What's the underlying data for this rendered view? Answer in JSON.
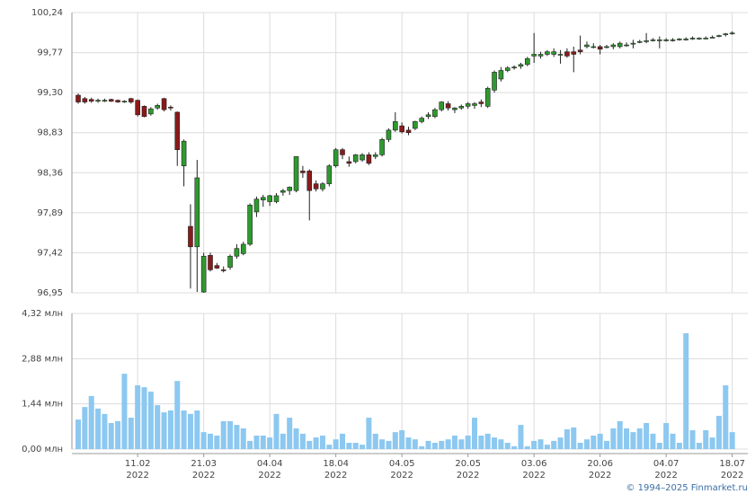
{
  "chart_data": [
    {
      "type": "candlestick",
      "open": [
        99.27,
        99.23,
        99.22,
        99.21,
        99.21,
        99.22,
        99.21,
        99.2,
        99.23,
        99.21,
        99.14,
        99.05,
        99.12,
        99.23,
        99.13,
        99.07,
        98.44,
        97.73,
        97.49,
        96.96,
        97.39,
        97.27,
        97.22,
        97.25,
        97.38,
        97.41,
        97.52,
        97.9,
        98.04,
        98.02,
        98.02,
        98.13,
        98.15,
        98.15,
        98.38,
        98.38,
        98.23,
        98.17,
        98.23,
        98.44,
        98.63,
        98.49,
        98.49,
        98.51,
        98.57,
        98.55,
        98.57,
        98.75,
        98.86,
        98.91,
        98.86,
        98.88,
        98.96,
        99.02,
        99.02,
        99.1,
        99.17,
        99.1,
        99.12,
        99.14,
        99.15,
        99.19,
        99.14,
        99.33,
        99.46,
        99.56,
        99.59,
        99.61,
        99.63,
        99.73,
        99.73,
        99.75,
        99.75,
        99.75,
        99.78,
        99.78,
        99.8,
        99.84,
        99.84,
        99.84,
        99.84,
        99.84,
        99.84,
        99.86,
        99.88,
        99.9,
        99.91,
        99.92,
        99.92,
        99.92,
        99.92,
        99.93,
        99.93,
        99.94,
        99.94,
        99.94,
        99.95,
        99.96,
        99.98,
        100.0
      ],
      "high": [
        99.29,
        99.25,
        99.24,
        99.23,
        99.23,
        99.23,
        99.22,
        99.21,
        99.24,
        99.22,
        99.15,
        99.13,
        99.17,
        99.24,
        99.15,
        99.08,
        98.75,
        97.99,
        98.51,
        97.42,
        97.42,
        97.3,
        97.26,
        97.4,
        97.52,
        97.55,
        98.0,
        98.08,
        98.1,
        98.1,
        98.12,
        98.17,
        98.2,
        98.55,
        98.44,
        98.4,
        98.27,
        98.25,
        98.46,
        98.65,
        98.65,
        98.55,
        98.58,
        98.59,
        98.6,
        98.6,
        98.77,
        98.88,
        99.07,
        98.95,
        98.9,
        98.97,
        99.02,
        99.07,
        99.12,
        99.2,
        99.2,
        99.13,
        99.16,
        99.19,
        99.19,
        99.22,
        99.37,
        99.56,
        99.6,
        99.61,
        99.62,
        99.65,
        99.72,
        100.0,
        99.78,
        99.8,
        99.82,
        99.8,
        99.82,
        99.84,
        99.97,
        99.9,
        99.88,
        99.86,
        99.86,
        99.88,
        99.9,
        99.89,
        99.92,
        99.92,
        100.0,
        99.94,
        99.96,
        99.94,
        99.94,
        99.94,
        99.95,
        99.96,
        99.95,
        99.96,
        99.97,
        99.98,
        100.0,
        100.02
      ],
      "low": [
        99.17,
        99.17,
        99.18,
        99.18,
        99.19,
        99.19,
        99.18,
        99.18,
        99.17,
        99.02,
        99.01,
        99.03,
        99.1,
        99.08,
        99.09,
        98.44,
        98.2,
        97.0,
        96.96,
        96.95,
        97.2,
        97.23,
        97.19,
        97.22,
        97.35,
        97.39,
        97.5,
        97.84,
        97.96,
        97.97,
        98.0,
        98.09,
        98.1,
        98.13,
        98.3,
        97.8,
        98.14,
        98.14,
        98.2,
        98.42,
        98.52,
        98.43,
        98.47,
        98.49,
        98.45,
        98.52,
        98.55,
        98.72,
        98.84,
        98.82,
        98.8,
        98.86,
        98.94,
        98.99,
        99.0,
        99.08,
        99.09,
        99.06,
        99.1,
        99.11,
        99.11,
        99.13,
        99.12,
        99.3,
        99.43,
        99.54,
        99.57,
        99.58,
        99.61,
        99.65,
        99.7,
        99.73,
        99.72,
        99.64,
        99.71,
        99.54,
        99.75,
        99.82,
        99.82,
        99.75,
        99.82,
        99.81,
        99.82,
        99.84,
        99.82,
        99.88,
        99.88,
        99.9,
        99.82,
        99.9,
        99.9,
        99.91,
        99.91,
        99.92,
        99.92,
        99.93,
        99.94,
        99.95,
        99.96,
        99.98
      ],
      "close": [
        99.19,
        99.19,
        99.2,
        99.21,
        99.21,
        99.2,
        99.19,
        99.2,
        99.19,
        99.04,
        99.02,
        99.11,
        99.15,
        99.1,
        99.12,
        98.63,
        98.73,
        97.49,
        98.3,
        97.38,
        97.22,
        97.24,
        97.21,
        97.38,
        97.47,
        97.52,
        97.98,
        98.05,
        98.07,
        98.09,
        98.09,
        98.15,
        98.19,
        98.55,
        98.36,
        98.15,
        98.17,
        98.23,
        98.44,
        98.63,
        98.57,
        98.47,
        98.57,
        98.57,
        98.47,
        98.57,
        98.75,
        98.86,
        98.96,
        98.84,
        98.83,
        98.96,
        99.0,
        99.04,
        99.1,
        99.19,
        99.12,
        99.12,
        99.14,
        99.17,
        99.17,
        99.17,
        99.35,
        99.54,
        99.56,
        99.59,
        99.6,
        99.63,
        99.7,
        99.75,
        99.75,
        99.78,
        99.78,
        99.75,
        99.73,
        99.75,
        99.78,
        99.86,
        99.84,
        99.81,
        99.84,
        99.86,
        99.88,
        99.86,
        99.88,
        99.9,
        99.91,
        99.92,
        99.92,
        99.92,
        99.92,
        99.93,
        99.93,
        99.94,
        99.94,
        99.94,
        99.95,
        99.97,
        99.99,
        100.0
      ],
      "up_color": "#2e9a2e",
      "down_color": "#8b1a1a",
      "ylim": [
        96.95,
        100.24
      ],
      "yticks": [
        {
          "value": 96.95,
          "label": "96,95"
        },
        {
          "value": 97.42,
          "label": "97,42"
        },
        {
          "value": 97.89,
          "label": "97,89"
        },
        {
          "value": 98.36,
          "label": "98,36"
        },
        {
          "value": 98.83,
          "label": "98,83"
        },
        {
          "value": 99.3,
          "label": "99,30"
        },
        {
          "value": 99.77,
          "label": "99,77"
        },
        {
          "value": 100.24,
          "label": "100,24"
        }
      ],
      "grid": true
    },
    {
      "type": "bar",
      "categories": [
        null,
        null,
        null,
        null,
        null,
        null,
        null,
        null,
        null,
        [
          "11.02",
          "2022"
        ],
        null,
        null,
        null,
        null,
        null,
        null,
        null,
        null,
        null,
        [
          "21.03",
          "2022"
        ],
        null,
        null,
        null,
        null,
        null,
        null,
        null,
        null,
        null,
        [
          "04.04",
          "2022"
        ],
        null,
        null,
        null,
        null,
        null,
        null,
        null,
        null,
        null,
        [
          "18.04",
          "2022"
        ],
        null,
        null,
        null,
        null,
        null,
        null,
        null,
        null,
        null,
        [
          "04.05",
          "2022"
        ],
        null,
        null,
        null,
        null,
        null,
        null,
        null,
        null,
        null,
        [
          "20.05",
          "2022"
        ],
        null,
        null,
        null,
        null,
        null,
        null,
        null,
        null,
        null,
        [
          "03.06",
          "2022"
        ],
        null,
        null,
        null,
        null,
        null,
        null,
        null,
        null,
        null,
        [
          "20.06",
          "2022"
        ],
        null,
        null,
        null,
        null,
        null,
        null,
        null,
        null,
        null,
        [
          "04.07",
          "2022"
        ],
        null,
        null,
        null,
        null,
        null,
        null,
        null,
        null,
        null,
        [
          "18.07",
          "2022"
        ]
      ],
      "values": [
        0.94,
        1.34,
        1.69,
        1.29,
        1.12,
        0.83,
        0.89,
        2.4,
        1.0,
        2.03,
        1.97,
        1.83,
        1.4,
        1.17,
        1.23,
        2.17,
        1.23,
        1.12,
        1.23,
        0.54,
        0.49,
        0.43,
        0.89,
        0.89,
        0.77,
        0.66,
        0.26,
        0.43,
        0.43,
        0.37,
        1.12,
        0.49,
        1.0,
        0.66,
        0.49,
        0.26,
        0.37,
        0.43,
        0.14,
        0.31,
        0.49,
        0.2,
        0.2,
        0.14,
        1.0,
        0.49,
        0.31,
        0.26,
        0.54,
        0.6,
        0.37,
        0.31,
        0.09,
        0.26,
        0.2,
        0.26,
        0.31,
        0.43,
        0.31,
        0.43,
        1.0,
        0.43,
        0.49,
        0.37,
        0.31,
        0.2,
        0.09,
        0.77,
        0.09,
        0.26,
        0.31,
        0.14,
        0.26,
        0.37,
        0.63,
        0.69,
        0.2,
        0.31,
        0.43,
        0.49,
        0.26,
        0.66,
        0.89,
        0.66,
        0.54,
        0.66,
        0.83,
        0.49,
        0.2,
        0.83,
        0.49,
        0.2,
        3.69,
        0.6,
        0.2,
        0.6,
        0.37,
        1.06,
        2.03,
        0.54
      ],
      "color": "#8cc8f0",
      "ylim": [
        0,
        4.32
      ],
      "yticks": [
        {
          "value": 0,
          "label": "0,00 млн"
        },
        {
          "value": 1.44,
          "label": "1,44 млн"
        },
        {
          "value": 2.88,
          "label": "2,88 млн"
        },
        {
          "value": 4.32,
          "label": "4,32 млн"
        }
      ],
      "grid": true
    }
  ],
  "footer": "© 1994–2025 Finmarket.ru"
}
